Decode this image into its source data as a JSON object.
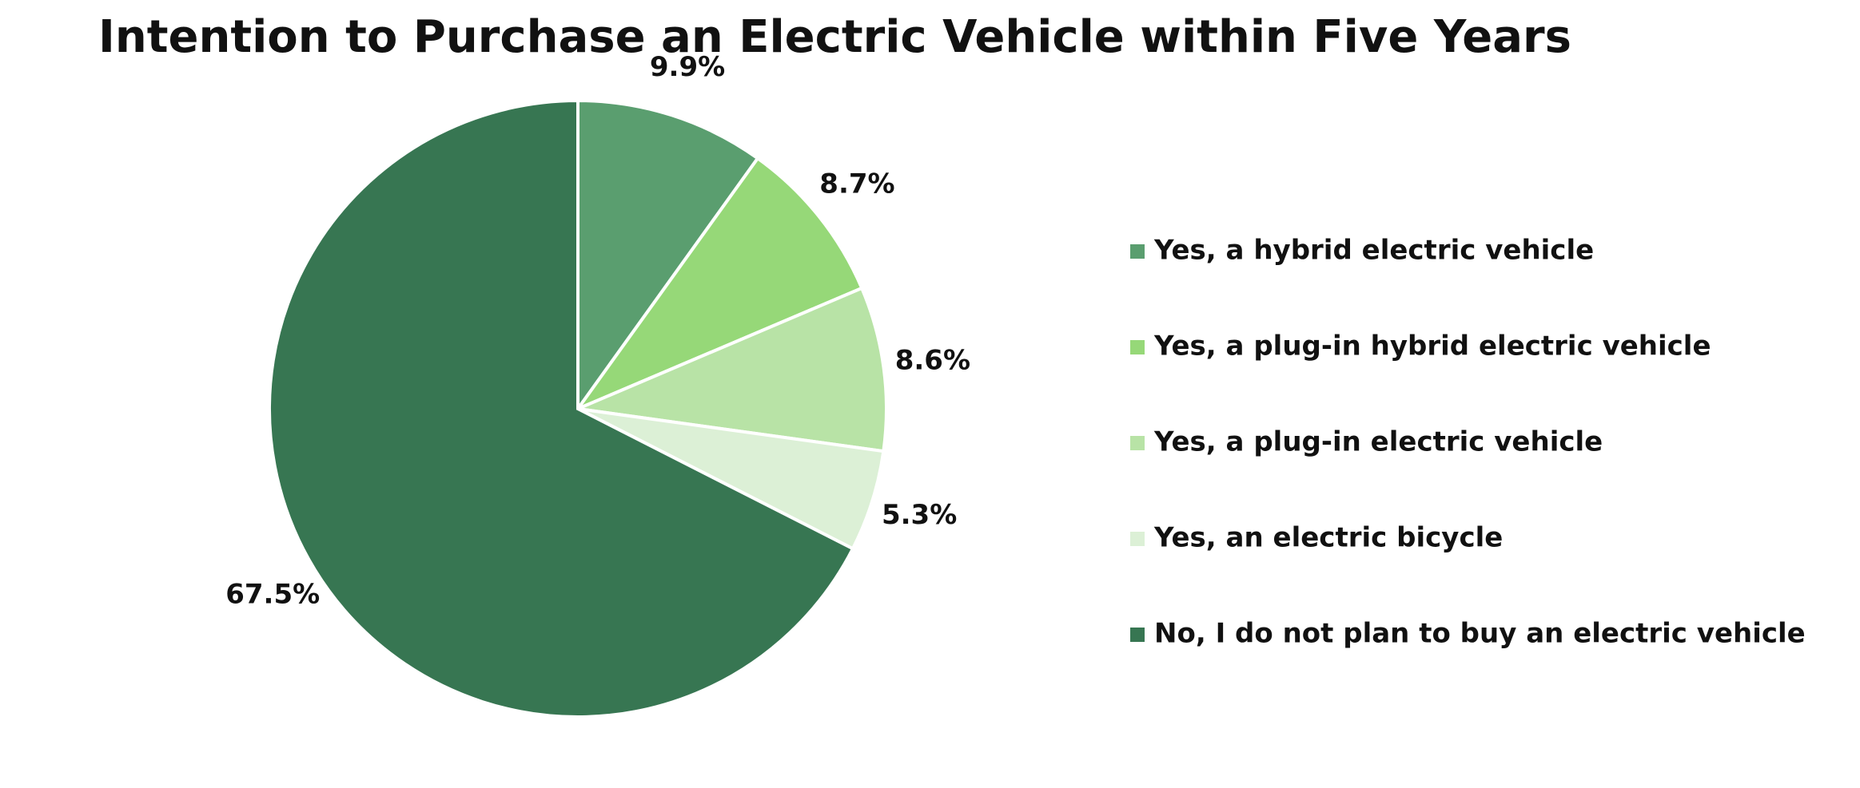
{
  "chart_data": {
    "type": "pie",
    "title": "Intention to Purchase an Electric Vehicle within Five Years",
    "categories": [
      "Yes, a hybrid electric vehicle",
      "Yes, a plug-in hybrid electric vehicle",
      "Yes, a plug-in electric vehicle",
      "Yes, an electric bicycle",
      "No, I do not plan to buy an electric vehicle"
    ],
    "values": [
      9.9,
      8.7,
      8.6,
      5.3,
      67.5
    ],
    "value_labels": [
      "9.9%",
      "8.7%",
      "8.6%",
      "5.3%",
      "67.5%"
    ],
    "colors": [
      "#5a9e6f",
      "#96d878",
      "#b8e3a6",
      "#dcf0d6",
      "#377652"
    ],
    "legend": "right"
  }
}
